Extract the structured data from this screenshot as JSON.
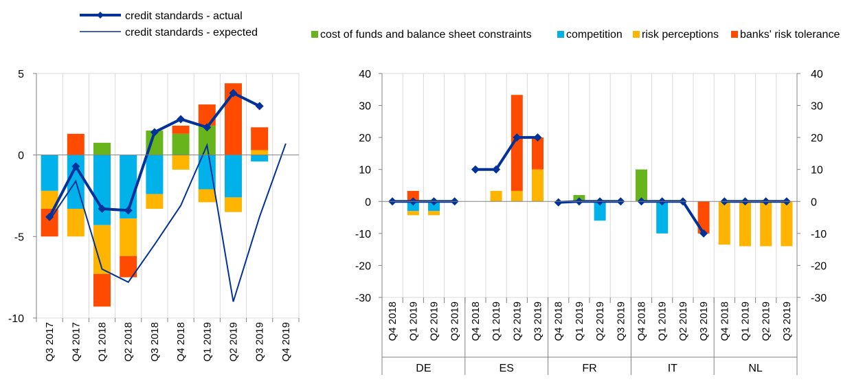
{
  "legend": {
    "line_actual": "credit standards - actual",
    "line_expected": "credit standards - expected",
    "bars": [
      {
        "label": "cost of funds and balance sheet constraints",
        "color": "#67B41D"
      },
      {
        "label": "competition",
        "color": "#00B1EA"
      },
      {
        "label": "risk perceptions",
        "color": "#FFB400"
      },
      {
        "label": "banks' risk tolerance",
        "color": "#FF4B00"
      }
    ]
  },
  "colors": {
    "actual_line": "#003299",
    "expected_line": "#003299",
    "grid": "#d9d9d9",
    "axis": "#808080"
  },
  "chart_data": [
    {
      "type": "bar",
      "stacked": true,
      "categories": [
        "Q3 2017",
        "Q4 2017",
        "Q1 2018",
        "Q2 2018",
        "Q3 2018",
        "Q4 2018",
        "Q1 2019",
        "Q2 2019",
        "Q3 2019",
        "Q4 2019"
      ],
      "ylim": [
        -10,
        5
      ],
      "yticks": [
        -10,
        -5,
        0,
        5
      ],
      "grid": true,
      "series": [
        {
          "name": "cost of funds and balance sheet constraints",
          "values": [
            0,
            0,
            0.75,
            0,
            1.5,
            1.3,
            1.8,
            0,
            0,
            null
          ]
        },
        {
          "name": "competition",
          "values": [
            -2.2,
            -3.3,
            -4.3,
            -3.9,
            -2.4,
            0,
            -2.1,
            -2.6,
            -0.4,
            null
          ]
        },
        {
          "name": "risk perceptions",
          "values": [
            -1.1,
            -1.7,
            -3.0,
            -2.3,
            -0.9,
            -0.9,
            -0.8,
            -0.9,
            0.3,
            null
          ]
        },
        {
          "name": "banks' risk tolerance",
          "values": [
            -1.7,
            1.3,
            -2.0,
            -1.3,
            0,
            0.5,
            1.3,
            4.4,
            1.4,
            null
          ]
        }
      ],
      "lines": [
        {
          "name": "credit standards - actual",
          "values": [
            -3.8,
            -0.7,
            -3.3,
            -3.4,
            1.4,
            2.2,
            1.7,
            3.8,
            3.0,
            null
          ],
          "markers": true
        },
        {
          "name": "credit standards - expected",
          "values": [
            -4.0,
            -1.6,
            -7.0,
            -7.8,
            -5.5,
            -3.1,
            0.6,
            -9.0,
            -3.8,
            0.7
          ],
          "markers": false
        }
      ]
    },
    {
      "type": "bar",
      "stacked": true,
      "groups": [
        "DE",
        "ES",
        "FR",
        "IT",
        "NL"
      ],
      "categories": [
        "Q4 2018",
        "Q1 2019",
        "Q2 2019",
        "Q3 2019"
      ],
      "ylim": [
        -30,
        40
      ],
      "yticks": [
        -30,
        -20,
        -10,
        0,
        10,
        20,
        30,
        40
      ],
      "grid": true,
      "series": [
        {
          "name": "cost of funds and balance sheet constraints",
          "values": [
            [
              0,
              0,
              0,
              0
            ],
            [
              0,
              0,
              0,
              0
            ],
            [
              0,
              2,
              0,
              0
            ],
            [
              10,
              0,
              0,
              0
            ],
            [
              0,
              0,
              0,
              0
            ]
          ]
        },
        {
          "name": "competition",
          "values": [
            [
              0,
              -3,
              -3,
              0
            ],
            [
              0,
              0,
              0,
              0
            ],
            [
              0,
              0,
              -6,
              0
            ],
            [
              0,
              -10,
              0,
              0
            ],
            [
              0,
              0,
              0,
              0
            ]
          ]
        },
        {
          "name": "risk perceptions",
          "values": [
            [
              0,
              -1.3,
              -1.3,
              0
            ],
            [
              0,
              3.3,
              3.3,
              10
            ],
            [
              0,
              0,
              0,
              0
            ],
            [
              0,
              0,
              0,
              0
            ],
            [
              -13.5,
              -14,
              -14,
              -14
            ]
          ]
        },
        {
          "name": "banks' risk tolerance",
          "values": [
            [
              0,
              3.3,
              0,
              0
            ],
            [
              0,
              0,
              30,
              10
            ],
            [
              0,
              0,
              0,
              0
            ],
            [
              0,
              0,
              0,
              -10
            ],
            [
              0,
              0,
              0,
              0
            ]
          ]
        }
      ],
      "lines": [
        {
          "name": "credit standards - actual",
          "values": [
            [
              0,
              0,
              0,
              0
            ],
            [
              10,
              10,
              20,
              20
            ],
            [
              -0.3,
              0,
              0,
              0
            ],
            [
              0,
              0,
              0,
              -10
            ],
            [
              0,
              0,
              0,
              0
            ]
          ],
          "markers": true
        }
      ]
    }
  ]
}
